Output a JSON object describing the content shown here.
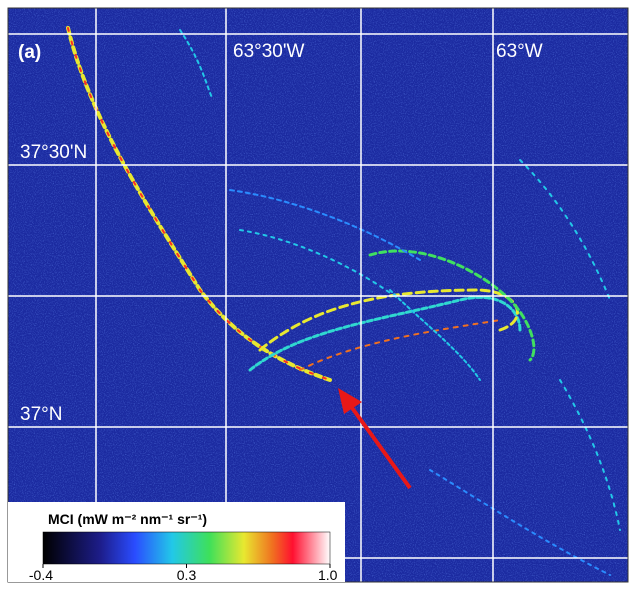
{
  "panel_label": "(a)",
  "longitude_labels": [
    "63°30'W",
    "63°W"
  ],
  "latitude_labels": [
    "37°30'N",
    "37°N"
  ],
  "colorbar": {
    "title": "MCI (mW m⁻² nm⁻¹ sr⁻¹)",
    "range": [
      -0.4,
      1
    ],
    "ticks": [
      -0.4,
      0.3,
      {
        "value": 1,
        "label": "1.0"
      }
    ]
  }
}
